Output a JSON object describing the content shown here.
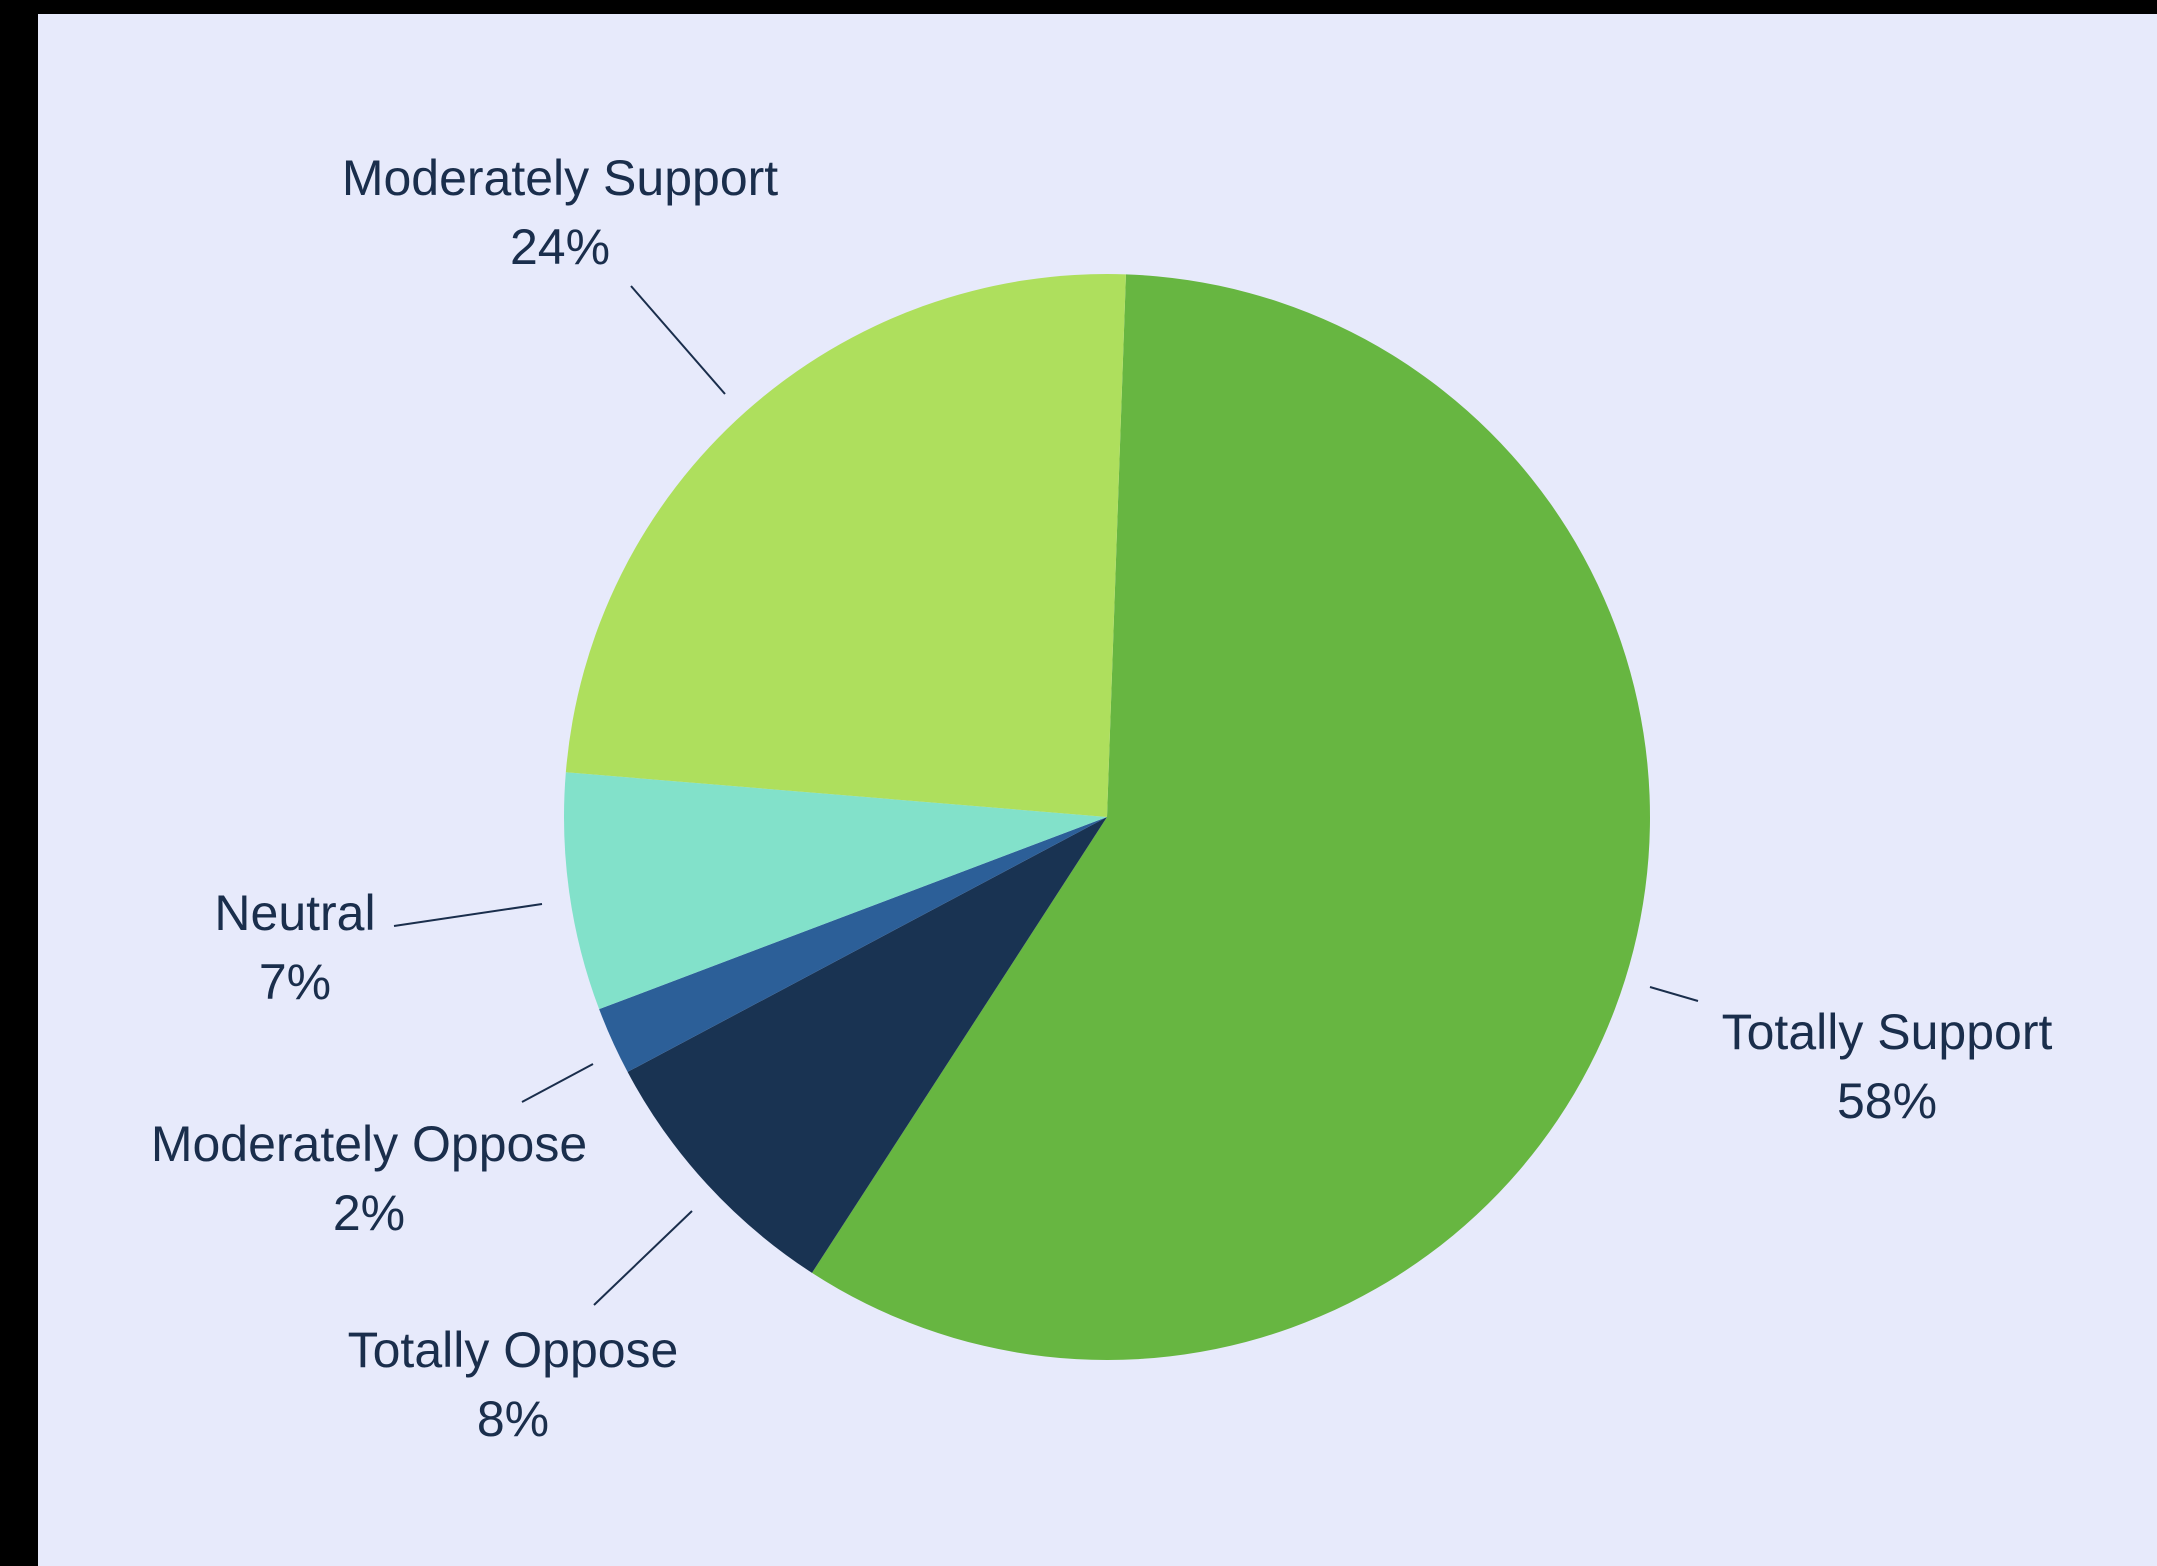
{
  "chart_data": {
    "type": "pie",
    "title": "",
    "start_angle_deg": 0,
    "direction": "clockwise",
    "slices": [
      {
        "label": "Totally Support",
        "value": 58,
        "display": "58%",
        "color": "#67b641"
      },
      {
        "label": "Totally Oppose",
        "value": 8,
        "display": "8%",
        "color": "#193352"
      },
      {
        "label": "Moderately Oppose",
        "value": 2,
        "display": "2%",
        "color": "#2c5f98"
      },
      {
        "label": "Neutral",
        "value": 7,
        "display": "7%",
        "color": "#82e1ca"
      },
      {
        "label": "Moderately Support",
        "value": 24,
        "display": "24%",
        "color": "#aedf5d"
      }
    ]
  }
}
